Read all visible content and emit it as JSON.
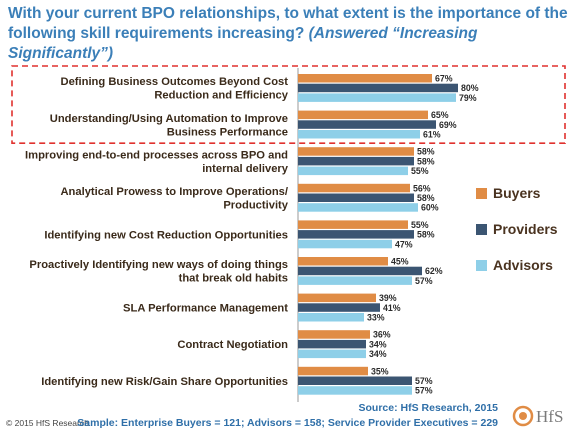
{
  "title_line1": "With your current BPO relationships, to what extent is the importance of the",
  "title_line2": "following skill requirements increasing?",
  "title_sub": "(Answered “Increasing Significantly”)",
  "footer_copyright": "© 2015 HfS Research",
  "source": "Source: HfS Research, 2015",
  "sample": "Sample: Enterprise Buyers = 121; Advisors = 158; Service Provider Executives = 229",
  "logo_text": "HfS",
  "colors": {
    "buyers": "#e08c45",
    "providers": "#3b5572",
    "advisors": "#8ecfe8",
    "highlight": "#e0312e"
  },
  "chart_data": {
    "type": "bar",
    "orientation": "horizontal",
    "value_unit": "%",
    "xlim": [
      0,
      100
    ],
    "categories": [
      [
        "Defining Business Outcomes Beyond Cost",
        "Reduction and Efficiency"
      ],
      [
        "Understanding/Using Automation to Improve",
        "Business Performance"
      ],
      [
        "Improving end-to-end processes across BPO and",
        "internal delivery"
      ],
      [
        "Analytical Prowess to Improve Operations/",
        "Productivity"
      ],
      [
        "Identifying new Cost Reduction Opportunities"
      ],
      [
        "Proactively Identifying new ways of doing things",
        "that break old habits"
      ],
      [
        "SLA Performance Management"
      ],
      [
        "Contract Negotiation"
      ],
      [
        "Identifying new Risk/Gain Share Opportunities"
      ]
    ],
    "series": [
      {
        "name": "Buyers",
        "values": [
          67,
          65,
          58,
          56,
          55,
          45,
          39,
          36,
          35
        ]
      },
      {
        "name": "Providers",
        "values": [
          80,
          69,
          58,
          58,
          58,
          62,
          41,
          34,
          57
        ]
      },
      {
        "name": "Advisors",
        "values": [
          79,
          61,
          55,
          60,
          47,
          57,
          33,
          34,
          57
        ]
      }
    ],
    "highlighted_categories": [
      0,
      1
    ],
    "legend_position": "right",
    "grid": false
  }
}
